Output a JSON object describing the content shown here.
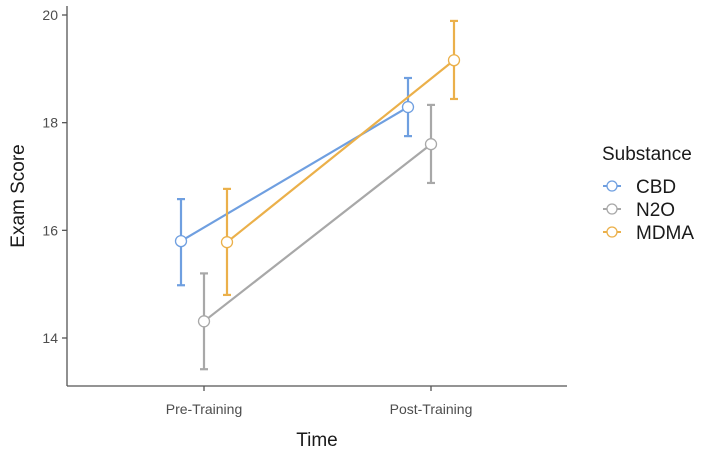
{
  "chart_data": {
    "type": "line",
    "title": "",
    "xlabel": "Time",
    "ylabel": "Exam Score",
    "categories": [
      "Pre-Training",
      "Post-Training"
    ],
    "ylim": [
      13.1,
      20.0
    ],
    "yticks": [
      14,
      16,
      18,
      20
    ],
    "grid": false,
    "legend": {
      "title": "Substance",
      "position": "right"
    },
    "error_bars": true,
    "series": [
      {
        "name": "CBD",
        "color": "#6f9fe0",
        "values": [
          15.8,
          18.29
        ],
        "lower": [
          14.98,
          17.75
        ],
        "upper": [
          16.58,
          18.83
        ]
      },
      {
        "name": "N2O",
        "color": "#a8a8a8",
        "values": [
          14.31,
          17.6
        ],
        "lower": [
          13.42,
          16.88
        ],
        "upper": [
          15.2,
          18.33
        ]
      },
      {
        "name": "MDMA",
        "color": "#ebb04a",
        "values": [
          15.78,
          19.16
        ],
        "lower": [
          14.8,
          18.44
        ],
        "upper": [
          16.77,
          19.89
        ]
      }
    ]
  },
  "axis": {
    "x_title": "Time",
    "y_title": "Exam Score",
    "x_ticks": [
      "Pre-Training",
      "Post-Training"
    ],
    "y_ticks": [
      "14",
      "16",
      "18",
      "20"
    ]
  },
  "legend": {
    "title": "Substance",
    "items": [
      "CBD",
      "N2O",
      "MDMA"
    ]
  }
}
